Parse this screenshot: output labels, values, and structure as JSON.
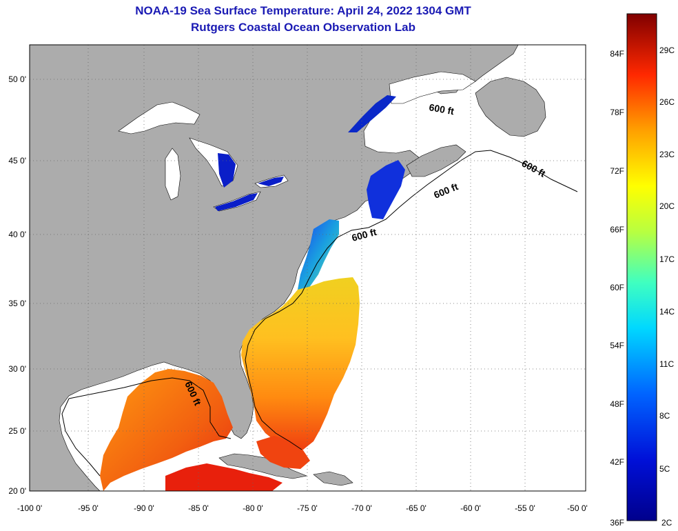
{
  "header": {
    "title": "NOAA-19 Sea Surface Temperature:  April 24, 2022 1304 GMT",
    "subtitle": "Rutgers Coastal Ocean Observation Lab"
  },
  "map": {
    "lon_labels": [
      "-100 0'",
      "-95 0'",
      "-90 0'",
      "-85 0'",
      "-80 0'",
      "-75 0'",
      "-70 0'",
      "-65 0'",
      "-60 0'",
      "-55 0'",
      "-50 0'"
    ],
    "lat_labels": [
      "50 0'",
      "45 0'",
      "40 0'",
      "35 0'",
      "30 0'",
      "25 0'",
      "20 0'"
    ],
    "contour_labels": [
      "600 ft",
      "600 ft",
      "600 ft",
      "600 ft",
      "600 ft"
    ]
  },
  "colorbar": {
    "fahrenheit_labels": [
      "84F",
      "78F",
      "72F",
      "66F",
      "60F",
      "54F",
      "48F",
      "42F",
      "36F"
    ],
    "celsius_labels": [
      "29C",
      "26C",
      "23C",
      "20C",
      "17C",
      "14C",
      "11C",
      "8C",
      "5C",
      "2C"
    ]
  },
  "colors": {
    "land": "#acacac",
    "no_data": "#ffffff",
    "title": "#1a1ab4",
    "cold": "#0a1496",
    "warm": "#e63010"
  }
}
